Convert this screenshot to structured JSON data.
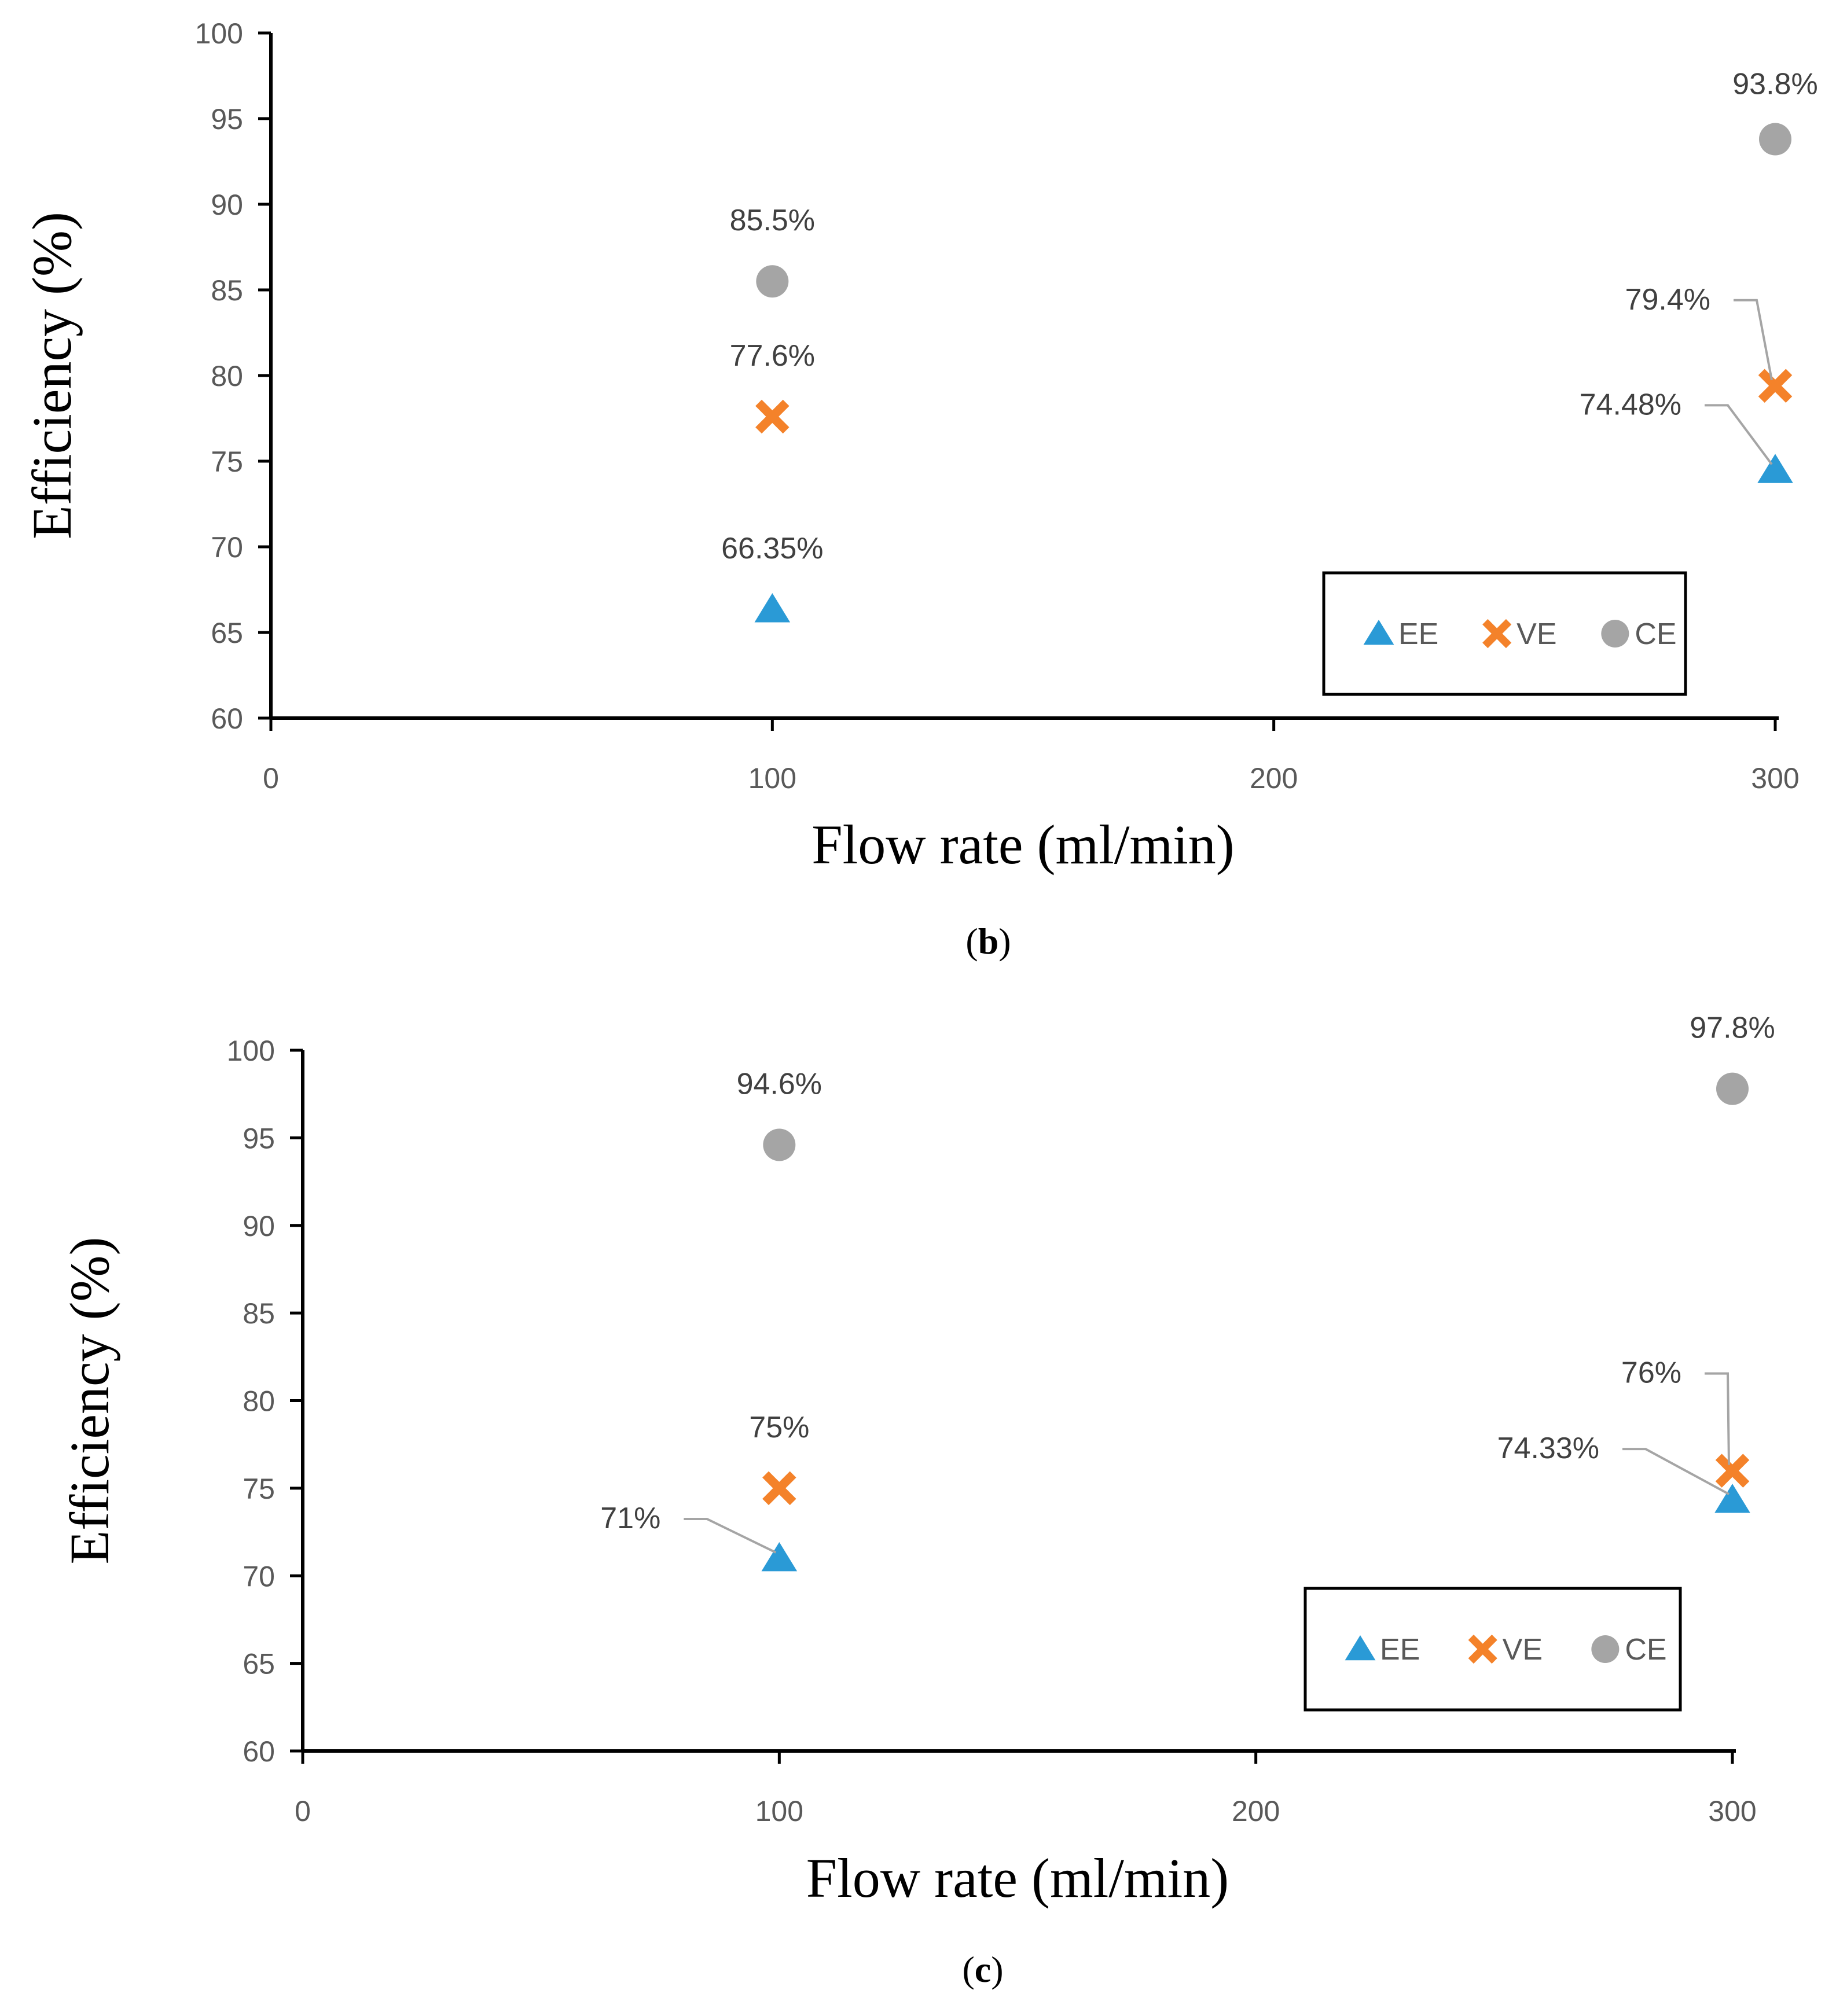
{
  "chart_data": [
    {
      "type": "scatter",
      "caption_open": "(",
      "caption_letter": "b",
      "caption_close": ")",
      "xlabel": "Flow rate (ml/min)",
      "ylabel": "Efficiency (%)",
      "xlim": [
        0,
        300
      ],
      "ylim": [
        60,
        100
      ],
      "x_ticks": [
        "0",
        "100",
        "200",
        "300"
      ],
      "y_ticks": [
        "60",
        "65",
        "70",
        "75",
        "80",
        "85",
        "90",
        "95",
        "100"
      ],
      "grid": false,
      "legend_position": "bottom-right",
      "series": [
        {
          "name": "EE",
          "marker": "triangle",
          "color": "#2a9ad6",
          "points": [
            {
              "x": 100,
              "y": 66.35,
              "label": "66.35%"
            },
            {
              "x": 300,
              "y": 74.48,
              "label": "74.48%"
            }
          ]
        },
        {
          "name": "VE",
          "marker": "x",
          "color": "#f4822a",
          "points": [
            {
              "x": 100,
              "y": 77.6,
              "label": "77.6%"
            },
            {
              "x": 300,
              "y": 79.4,
              "label": "79.4%"
            }
          ]
        },
        {
          "name": "CE",
          "marker": "circle",
          "color": "#a5a5a5",
          "points": [
            {
              "x": 100,
              "y": 85.5,
              "label": "85.5%"
            },
            {
              "x": 300,
              "y": 93.8,
              "label": "93.8%"
            }
          ]
        }
      ]
    },
    {
      "type": "scatter",
      "caption_open": "(",
      "caption_letter": "c",
      "caption_close": ")",
      "xlabel": "Flow rate (ml/min)",
      "ylabel": "Efficiency (%)",
      "xlim": [
        0,
        300
      ],
      "ylim": [
        60,
        100
      ],
      "x_ticks": [
        "0",
        "100",
        "200",
        "300"
      ],
      "y_ticks": [
        "60",
        "65",
        "70",
        "75",
        "80",
        "85",
        "90",
        "95",
        "100"
      ],
      "grid": false,
      "legend_position": "bottom-right",
      "series": [
        {
          "name": "EE",
          "marker": "triangle",
          "color": "#2a9ad6",
          "points": [
            {
              "x": 100,
              "y": 71,
              "label": "71%"
            },
            {
              "x": 300,
              "y": 74.33,
              "label": "74.33%"
            }
          ]
        },
        {
          "name": "VE",
          "marker": "x",
          "color": "#f4822a",
          "points": [
            {
              "x": 100,
              "y": 75,
              "label": "75%"
            },
            {
              "x": 300,
              "y": 76,
              "label": "76%"
            }
          ]
        },
        {
          "name": "CE",
          "marker": "circle",
          "color": "#a5a5a5",
          "points": [
            {
              "x": 100,
              "y": 94.6,
              "label": "94.6%"
            },
            {
              "x": 300,
              "y": 97.8,
              "label": "97.8%"
            }
          ]
        }
      ]
    }
  ]
}
